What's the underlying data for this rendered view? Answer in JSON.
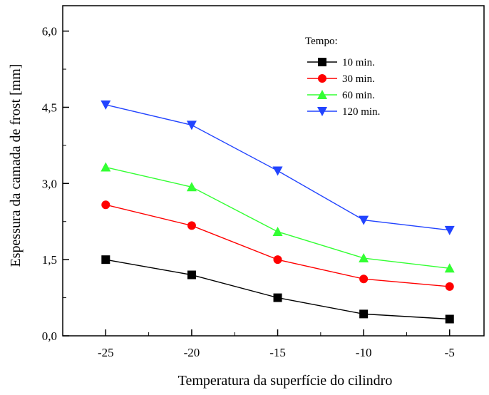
{
  "chart_data": {
    "type": "line",
    "title": "",
    "xlabel": "Temperatura da superfície do cilindro",
    "ylabel": "Espessura da camada de frost [mm]",
    "x": [
      -25,
      -20,
      -15,
      -10,
      -5
    ],
    "xlim": [
      -27.5,
      -3
    ],
    "ylim": [
      0,
      6.5
    ],
    "x_ticks": [
      "-25",
      "-20",
      "-15",
      "-10",
      "-5"
    ],
    "y_ticks": [
      "0,0",
      "1,5",
      "3,0",
      "4,5",
      "6,0"
    ],
    "y_tick_values": [
      0,
      1.5,
      3.0,
      4.5,
      6.0
    ],
    "grid": false,
    "legend_title": "Tempo:",
    "legend_position": "top-right",
    "series": [
      {
        "name": "10 min.",
        "color": "#000000",
        "marker": "square",
        "values": [
          1.5,
          1.2,
          0.75,
          0.43,
          0.33
        ]
      },
      {
        "name": "30 min.",
        "color": "#ff0000",
        "marker": "circle",
        "values": [
          2.58,
          2.17,
          1.5,
          1.12,
          0.97
        ]
      },
      {
        "name": "60 min.",
        "color": "#33ff33",
        "marker": "triangle-up",
        "values": [
          3.32,
          2.93,
          2.05,
          1.53,
          1.33
        ]
      },
      {
        "name": "120 min.",
        "color": "#2244ff",
        "marker": "triangle-down",
        "values": [
          4.55,
          4.15,
          3.25,
          2.28,
          2.08
        ]
      }
    ]
  }
}
